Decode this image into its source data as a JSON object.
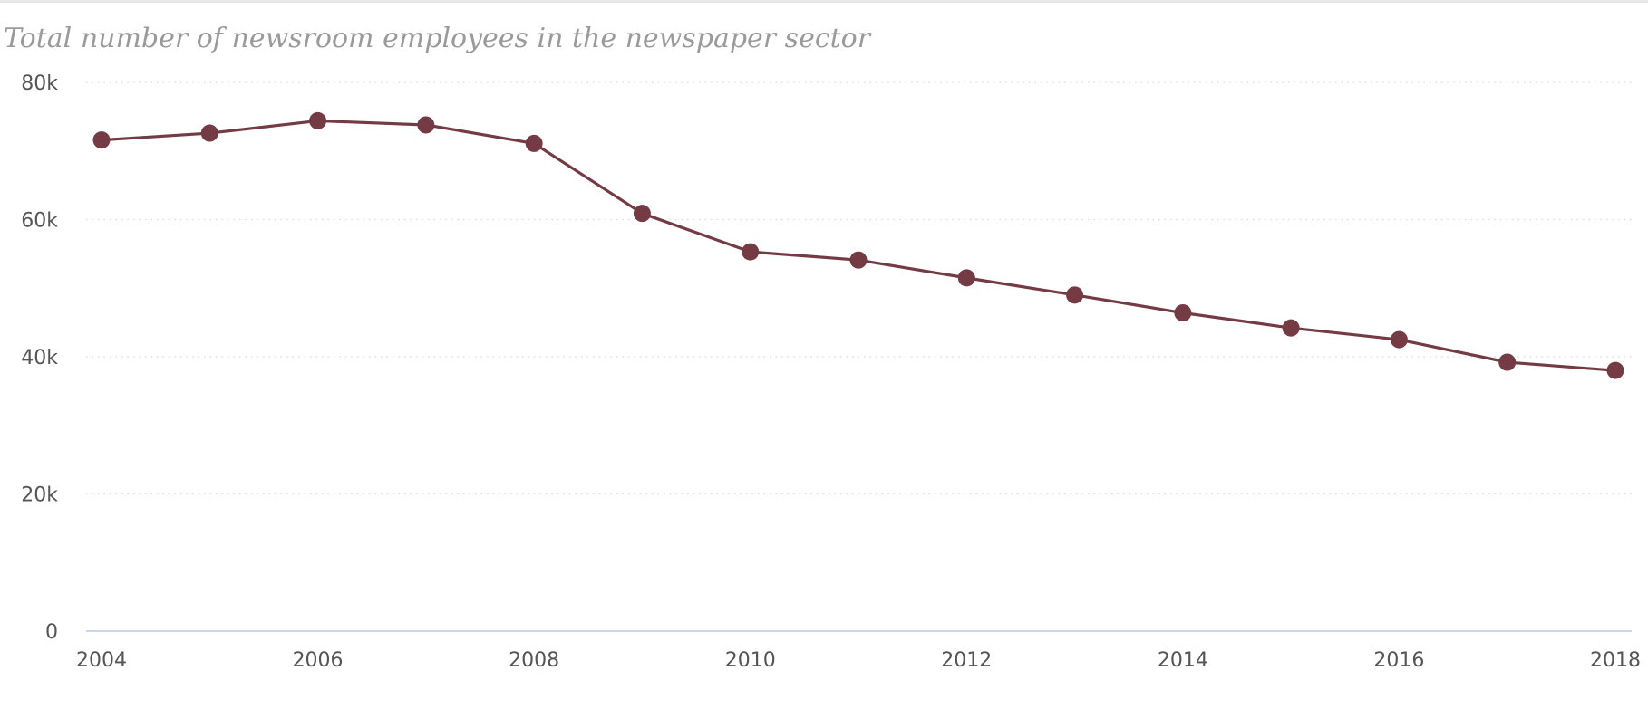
{
  "chart_data": {
    "type": "line",
    "title": "Total number of newsroom employees in the newspaper sector",
    "xlabel": "",
    "ylabel": "",
    "x": [
      2004,
      2005,
      2006,
      2007,
      2008,
      2009,
      2010,
      2011,
      2012,
      2013,
      2014,
      2015,
      2016,
      2017,
      2018
    ],
    "series": [
      {
        "name": "",
        "values": [
          71600,
          72600,
          74400,
          73800,
          71100,
          60900,
          55300,
          54100,
          51500,
          49000,
          46400,
          44200,
          42500,
          39200,
          38000
        ]
      }
    ],
    "xlim": [
      2004,
      2018
    ],
    "ylim": [
      0,
      80000
    ],
    "x_ticks": [
      2004,
      2006,
      2008,
      2010,
      2012,
      2014,
      2016,
      2018
    ],
    "x_tick_labels": [
      "2004",
      "2006",
      "2008",
      "2010",
      "2012",
      "2014",
      "2016",
      "2018"
    ],
    "y_ticks": [
      0,
      20000,
      40000,
      60000,
      80000
    ],
    "y_tick_labels": [
      "0",
      "20k",
      "40k",
      "60k",
      "80k"
    ],
    "grid": true,
    "legend": "none",
    "colors": {
      "line": "#743b45",
      "marker": "#743b45",
      "grid": "#d9d9d9",
      "baseline": "#ccd6eb",
      "title": "#9a9a9a",
      "tick_text": "#555555"
    }
  }
}
